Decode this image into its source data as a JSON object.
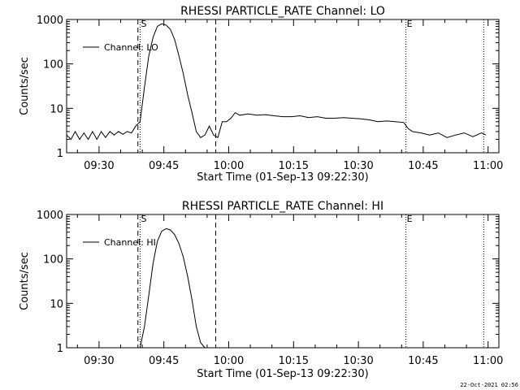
{
  "footer": {
    "timestamp": "22-Oct-2021 02:56"
  },
  "chart_data": [
    {
      "type": "line",
      "title": "RHESSI PARTICLE_RATE Channel: LO",
      "xlabel": "Start Time (01-Sep-13 09:22:30)",
      "ylabel": "Counts/sec",
      "y_scale": "log",
      "ylim": [
        1,
        1000
      ],
      "xlim_minutes_from_start": [
        0,
        100
      ],
      "x_tick_labels": [
        "09:30",
        "09:45",
        "10:00",
        "10:15",
        "10:30",
        "10:45",
        "11:00"
      ],
      "x_tick_minutes": [
        7.5,
        22.5,
        37.5,
        52.5,
        67.5,
        82.5,
        97.5
      ],
      "y_tick_labels": [
        "1",
        "10",
        "100",
        "1000"
      ],
      "y_tick_values": [
        1,
        10,
        100,
        1000
      ],
      "markers": [
        {
          "label": "S",
          "minute": 17.0,
          "style": "dotted"
        },
        {
          "label": "",
          "minute": 16.5,
          "style": "dashed"
        },
        {
          "label": "",
          "minute": 34.5,
          "style": "dashed"
        },
        {
          "label": "E",
          "minute": 78.5,
          "style": "dotted"
        },
        {
          "label": "",
          "minute": 96.5,
          "style": "dotted"
        }
      ],
      "series": [
        {
          "name": "Channel: LO",
          "x": [
            0,
            1,
            2,
            3,
            4,
            5,
            6,
            7,
            8,
            9,
            10,
            11,
            12,
            13,
            14,
            15,
            16,
            17,
            18,
            19,
            20,
            21,
            22,
            23,
            24,
            25,
            26,
            27,
            28,
            29,
            30,
            31,
            32,
            33,
            34,
            35,
            36,
            37,
            38,
            39,
            40,
            42,
            44,
            46,
            48,
            50,
            52,
            54,
            56,
            58,
            60,
            62,
            64,
            66,
            68,
            70,
            72,
            74,
            76,
            78,
            79,
            80,
            82,
            84,
            86,
            88,
            90,
            92,
            94,
            96,
            97
          ],
          "y": [
            2.5,
            2,
            3,
            2,
            2.8,
            2,
            3,
            2,
            3,
            2.2,
            3,
            2.5,
            3,
            2.6,
            3,
            2.8,
            4,
            5,
            30,
            150,
            400,
            700,
            800,
            750,
            600,
            350,
            150,
            60,
            20,
            8,
            3,
            2.2,
            2.5,
            4,
            2.5,
            2.2,
            5,
            5,
            6,
            8,
            7,
            7.5,
            7,
            7.2,
            6.8,
            6.5,
            6.5,
            6.8,
            6.2,
            6.5,
            6,
            6,
            6.2,
            6,
            5.8,
            5.5,
            5,
            5.2,
            5,
            4.8,
            3.5,
            3,
            2.8,
            2.5,
            2.8,
            2.2,
            2.5,
            2.8,
            2.3,
            2.8,
            2.5
          ]
        }
      ]
    },
    {
      "type": "line",
      "title": "RHESSI PARTICLE_RATE Channel: HI",
      "xlabel": "Start Time (01-Sep-13 09:22:30)",
      "ylabel": "Counts/sec",
      "y_scale": "log",
      "ylim": [
        1,
        1000
      ],
      "xlim_minutes_from_start": [
        0,
        100
      ],
      "x_tick_labels": [
        "09:30",
        "09:45",
        "10:00",
        "10:15",
        "10:30",
        "10:45",
        "11:00"
      ],
      "x_tick_minutes": [
        7.5,
        22.5,
        37.5,
        52.5,
        67.5,
        82.5,
        97.5
      ],
      "y_tick_labels": [
        "1",
        "10",
        "100",
        "1000"
      ],
      "y_tick_values": [
        1,
        10,
        100,
        1000
      ],
      "markers": [
        {
          "label": "S",
          "minute": 17.0,
          "style": "dotted"
        },
        {
          "label": "",
          "minute": 16.5,
          "style": "dashed"
        },
        {
          "label": "",
          "minute": 34.5,
          "style": "dashed"
        },
        {
          "label": "E",
          "minute": 78.5,
          "style": "dotted"
        },
        {
          "label": "",
          "minute": 96.5,
          "style": "dotted"
        }
      ],
      "series": [
        {
          "name": "Channel: HI",
          "x": [
            17,
            18,
            19,
            20,
            21,
            22,
            23,
            24,
            25,
            26,
            27,
            28,
            29,
            30,
            31,
            32
          ],
          "y": [
            1,
            3,
            15,
            80,
            250,
            420,
            480,
            450,
            350,
            220,
            110,
            40,
            12,
            3,
            1.3,
            1
          ]
        }
      ]
    }
  ]
}
